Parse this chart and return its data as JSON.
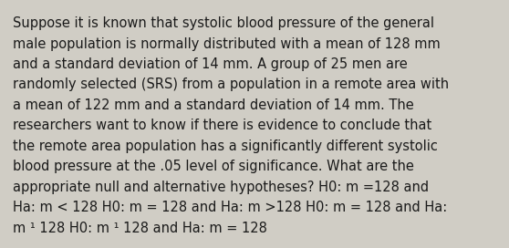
{
  "background_color": "#d0cdc5",
  "text_color": "#1a1a1a",
  "font_size": 10.5,
  "font_family": "DejaVu Sans",
  "lines": [
    "Suppose it is known that systolic blood pressure of the general",
    "male population is normally distributed with a mean of 128 mm",
    "and a standard deviation of 14 mm. A group of 25 men are",
    "randomly selected (SRS) from a population in a remote area with",
    "a mean of 122 mm and a standard deviation of 14 mm. The",
    "researchers want to know if there is evidence to conclude that",
    "the remote area population has a significantly different systolic",
    "blood pressure at the .05 level of significance. What are the",
    "appropriate null and alternative hypotheses? H0: m =128 and",
    "Ha: m < 128 H0: m = 128 and Ha: m >128 H0: m = 128 and Ha:",
    "m ¹ 128 H0: m ¹ 128 and Ha: m = 128"
  ]
}
